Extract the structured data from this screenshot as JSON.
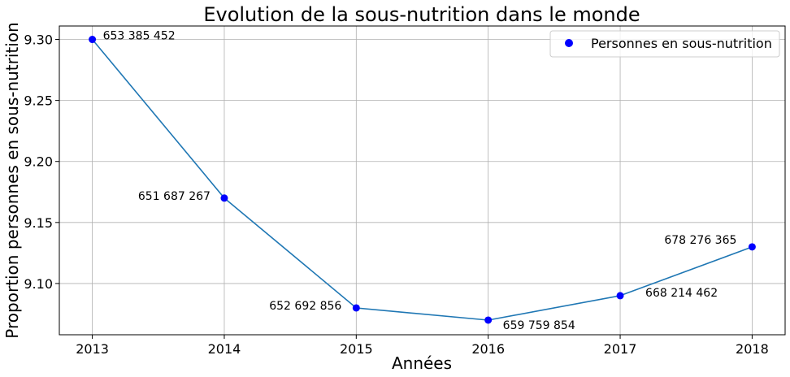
{
  "chart_data": {
    "type": "line",
    "title": "Evolution de la sous-nutrition dans le monde",
    "xlabel": "Années",
    "ylabel": "Proportion personnes en sous-nutrition",
    "x": [
      2013,
      2014,
      2015,
      2016,
      2017,
      2018
    ],
    "series": [
      {
        "name": "Personnes en sous-nutrition",
        "values": [
          9.3,
          9.17,
          9.08,
          9.07,
          9.09,
          9.13
        ],
        "labels": [
          "653 385 452",
          "651 687 267",
          "652 692 856",
          "659 759 854",
          "668 214 462",
          "678 276 365"
        ],
        "line_color": "#1f77b4",
        "marker_color": "#0000ff"
      }
    ],
    "xticks": [
      "2013",
      "2014",
      "2015",
      "2016",
      "2017",
      "2018"
    ],
    "yticks": [
      "9.10",
      "9.15",
      "9.20",
      "9.25",
      "9.30"
    ],
    "xlim": [
      2012.75,
      2018.25
    ],
    "ylim": [
      9.058,
      9.311
    ],
    "grid": true,
    "legend_position": "top-right"
  }
}
